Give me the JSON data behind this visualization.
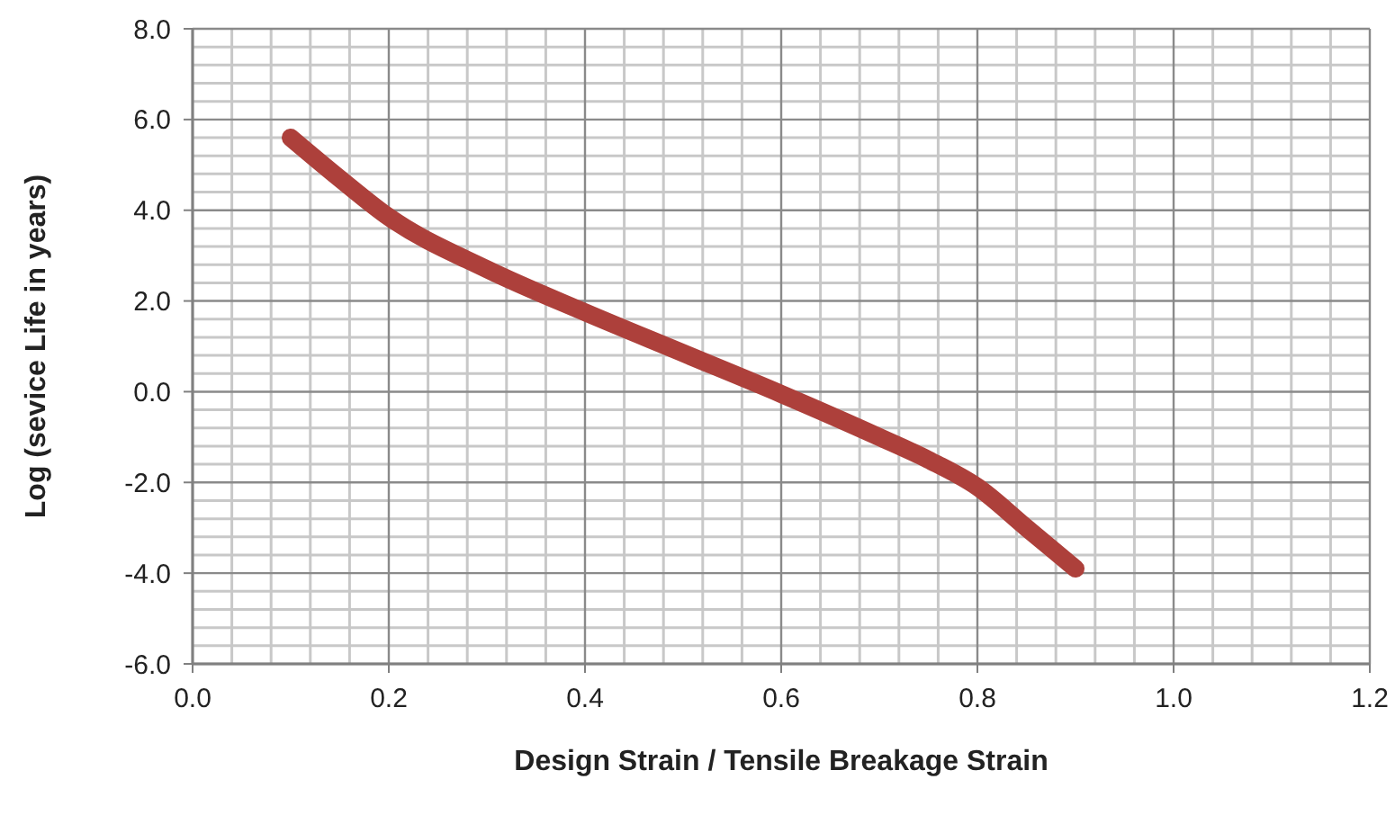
{
  "chart_data": {
    "type": "line",
    "xlabel": "Design Strain / Tensile Breakage Strain",
    "ylabel": "Log (sevice Life in years)",
    "xlim": [
      0,
      1.2
    ],
    "ylim": [
      -6,
      8
    ],
    "xticks": [
      {
        "value": 0,
        "label": "0.0"
      },
      {
        "value": 0.2,
        "label": "0.2"
      },
      {
        "value": 0.4,
        "label": "0.4"
      },
      {
        "value": 0.6,
        "label": "0.6"
      },
      {
        "value": 0.8,
        "label": "0.8"
      },
      {
        "value": 1,
        "label": "1.0"
      },
      {
        "value": 1.2,
        "label": "1.2"
      }
    ],
    "yticks": [
      {
        "value": -6,
        "label": "-6.0"
      },
      {
        "value": -4,
        "label": "-4.0"
      },
      {
        "value": -2,
        "label": "-2.0"
      },
      {
        "value": 0,
        "label": "0.0"
      },
      {
        "value": 2,
        "label": "2.0"
      },
      {
        "value": 4,
        "label": "4.0"
      },
      {
        "value": 6,
        "label": "6.0"
      },
      {
        "value": 8,
        "label": "8.0"
      }
    ],
    "grid": true,
    "marker": "none",
    "line_style": "solid",
    "x": [
      0.1,
      0.15,
      0.2,
      0.3,
      0.4,
      0.5,
      0.6,
      0.7,
      0.75,
      0.8,
      0.85,
      0.9
    ],
    "series": [
      {
        "color": "#ad403b",
        "values": [
          5.6,
          4.7,
          3.85,
          2.7,
          1.75,
          0.85,
          -0.05,
          -1.0,
          -1.5,
          -2.1,
          -3.0,
          -3.9
        ]
      }
    ]
  }
}
